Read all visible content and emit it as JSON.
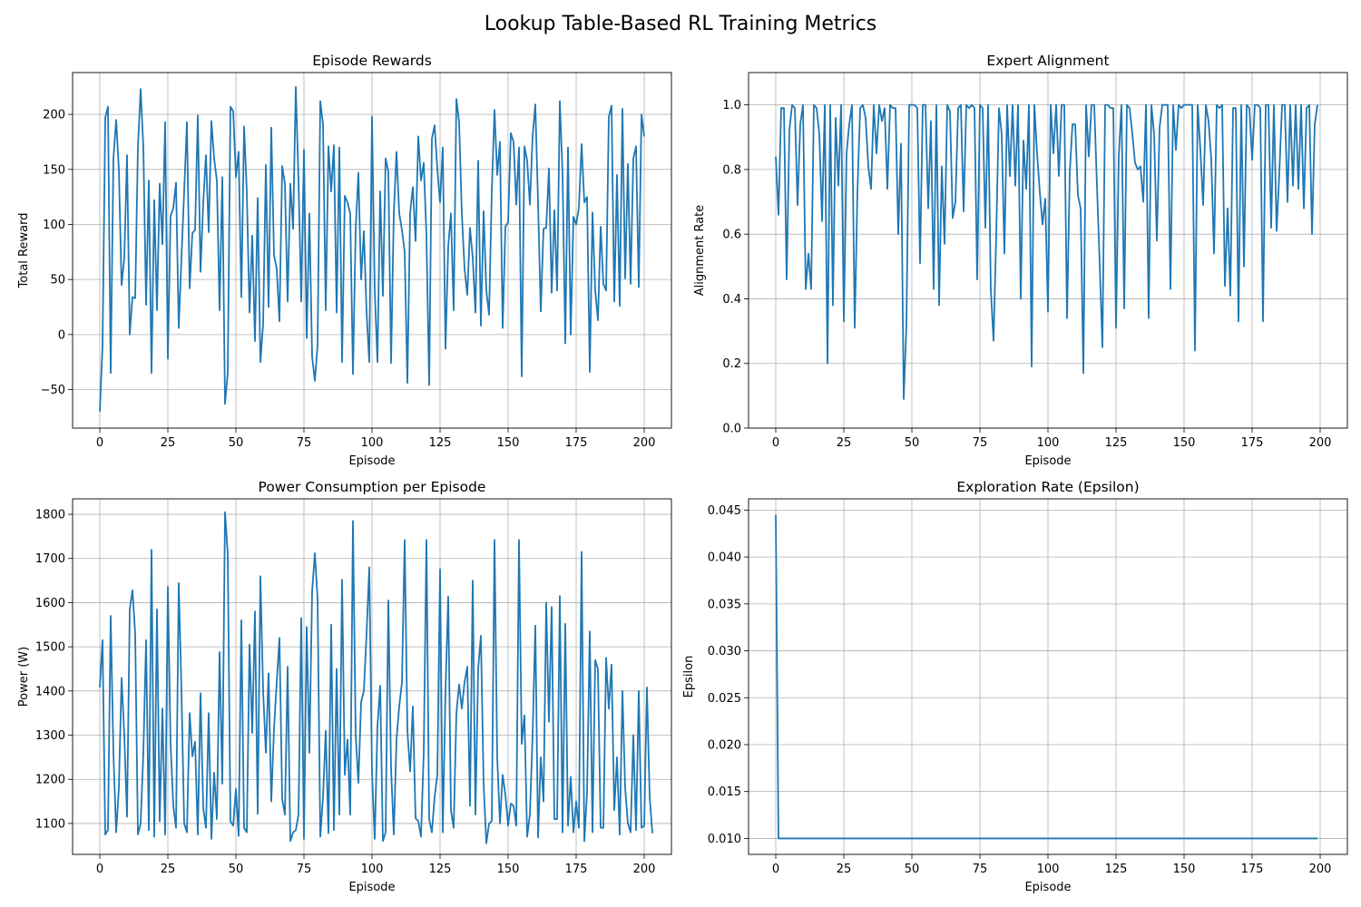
{
  "figure": {
    "title": "Lookup Table-Based RL Training Metrics",
    "line_color": "#1f77b4",
    "grid_color": "#b0b0b0"
  },
  "chart_data": [
    {
      "type": "line",
      "title": "Episode Rewards",
      "xlabel": "Episode",
      "ylabel": "Total Reward",
      "xlim": [
        -10,
        210
      ],
      "ylim": [
        -85,
        238
      ],
      "xticks": [
        0,
        25,
        50,
        75,
        100,
        125,
        150,
        175,
        200
      ],
      "yticks": [
        -50,
        0,
        50,
        100,
        150,
        200
      ],
      "x_start": 0,
      "series": [
        {
          "name": "Episode Rewards",
          "values": [
            -70,
            -10,
            197,
            207,
            -35,
            160,
            195,
            150,
            45,
            70,
            163,
            0,
            34,
            33,
            170,
            223,
            170,
            27,
            140,
            -35,
            122,
            22,
            137,
            82,
            193,
            -22,
            108,
            115,
            138,
            6,
            70,
            130,
            193,
            42,
            92,
            95,
            199,
            57,
            120,
            163,
            93,
            194,
            160,
            140,
            22,
            143,
            -63,
            -35,
            207,
            203,
            143,
            166,
            34,
            189,
            130,
            20,
            90,
            -6,
            124,
            -25,
            10,
            154,
            25,
            188,
            72,
            60,
            12,
            153,
            137,
            30,
            137,
            96,
            225,
            140,
            30,
            168,
            -3,
            110,
            -20,
            -42,
            -10,
            212,
            191,
            22,
            171,
            130,
            172,
            20,
            170,
            -25,
            126,
            120,
            110,
            -36,
            96,
            147,
            50,
            94,
            20,
            -25,
            198,
            40,
            -25,
            130,
            35,
            160,
            148,
            -26,
            110,
            166,
            110,
            95,
            75,
            -44,
            110,
            134,
            85,
            180,
            140,
            156,
            90,
            -46,
            178,
            190,
            150,
            120,
            170,
            -13,
            80,
            110,
            22,
            214,
            193,
            110,
            60,
            36,
            97,
            70,
            20,
            158,
            8,
            112,
            40,
            18,
            130,
            204,
            145,
            175,
            6,
            98,
            102,
            183,
            175,
            118,
            170,
            -38,
            171,
            158,
            118,
            180,
            209,
            120,
            21,
            96,
            97,
            151,
            38,
            113,
            40,
            212,
            146,
            -8,
            170,
            0,
            107,
            100,
            115,
            173,
            120,
            125,
            -34,
            111,
            40,
            13,
            98,
            46,
            40,
            198,
            208,
            30,
            145,
            26,
            205,
            51,
            155,
            46,
            160,
            171,
            43,
            200,
            180
          ]
        }
      ]
    },
    {
      "type": "line",
      "title": "Expert Alignment",
      "xlabel": "Episode",
      "ylabel": "Alignment Rate",
      "xlim": [
        -10,
        210
      ],
      "ylim": [
        0.0,
        1.1
      ],
      "xticks": [
        0,
        25,
        50,
        75,
        100,
        125,
        150,
        175,
        200
      ],
      "yticks": [
        0.0,
        0.2,
        0.4,
        0.6,
        0.8,
        1.0
      ],
      "x_start": 0,
      "series": [
        {
          "name": "Expert Alignment",
          "values": [
            0.84,
            0.66,
            0.99,
            0.99,
            0.46,
            0.92,
            1.0,
            0.99,
            0.69,
            0.94,
            1.0,
            0.43,
            0.54,
            0.43,
            1.0,
            0.99,
            0.91,
            0.64,
            1.0,
            0.2,
            1.0,
            0.38,
            0.96,
            0.75,
            1.0,
            0.33,
            0.85,
            0.94,
            1.0,
            0.31,
            0.73,
            0.99,
            1.0,
            0.96,
            0.81,
            0.74,
            1.0,
            0.85,
            1.0,
            0.95,
            0.99,
            0.74,
            1.0,
            0.99,
            0.99,
            0.6,
            0.88,
            0.09,
            0.32,
            1.0,
            1.0,
            1.0,
            0.99,
            0.51,
            1.0,
            1.0,
            0.68,
            0.95,
            0.43,
            1.0,
            0.38,
            0.81,
            0.57,
            1.0,
            0.98,
            0.65,
            0.7,
            0.99,
            1.0,
            0.67,
            1.0,
            0.99,
            1.0,
            0.99,
            0.46,
            1.0,
            0.99,
            0.62,
            1.0,
            0.43,
            0.27,
            0.6,
            0.99,
            0.91,
            0.54,
            1.0,
            0.78,
            1.0,
            0.75,
            1.0,
            0.4,
            0.89,
            0.74,
            1.0,
            0.19,
            1.0,
            0.85,
            0.73,
            0.63,
            0.71,
            0.36,
            1.0,
            0.85,
            1.0,
            0.78,
            1.0,
            1.0,
            0.34,
            0.79,
            0.94,
            0.94,
            0.72,
            0.68,
            0.17,
            1.0,
            0.84,
            1.0,
            1.0,
            0.75,
            0.51,
            0.25,
            1.0,
            1.0,
            0.99,
            0.99,
            0.31,
            0.84,
            1.0,
            0.37,
            1.0,
            0.99,
            0.91,
            0.82,
            0.8,
            0.81,
            0.7,
            1.0,
            0.34,
            1.0,
            0.91,
            0.58,
            0.93,
            1.0,
            1.0,
            1.0,
            0.43,
            1.0,
            0.86,
            1.0,
            0.99,
            1.0,
            1.0,
            1.0,
            1.0,
            0.24,
            1.0,
            0.86,
            0.69,
            1.0,
            0.95,
            0.83,
            0.54,
            1.0,
            0.99,
            1.0,
            0.44,
            0.68,
            0.41,
            0.99,
            0.99,
            0.33,
            1.0,
            0.5,
            1.0,
            0.99,
            0.83,
            1.0,
            1.0,
            0.99,
            0.33,
            1.0,
            1.0,
            0.62,
            1.0,
            0.61,
            0.79,
            1.0,
            1.0,
            0.7,
            1.0,
            0.75,
            1.0,
            0.74,
            1.0,
            0.68,
            0.99,
            1.0,
            0.6,
            0.94,
            1.0
          ]
        }
      ]
    },
    {
      "type": "line",
      "title": "Power Consumption per Episode",
      "xlabel": "Episode",
      "ylabel": "Power (W)",
      "xlim": [
        -10,
        210
      ],
      "ylim": [
        1030,
        1835
      ],
      "xticks": [
        0,
        25,
        50,
        75,
        100,
        125,
        150,
        175,
        200
      ],
      "yticks": [
        1100,
        1200,
        1300,
        1400,
        1500,
        1600,
        1700,
        1800
      ],
      "x_start": 0,
      "series": [
        {
          "name": "Power Consumption",
          "values": [
            1408,
            1515,
            1075,
            1085,
            1570,
            1260,
            1080,
            1180,
            1430,
            1300,
            1115,
            1585,
            1628,
            1530,
            1075,
            1100,
            1260,
            1515,
            1085,
            1720,
            1070,
            1585,
            1105,
            1360,
            1075,
            1636,
            1280,
            1140,
            1090,
            1644,
            1400,
            1100,
            1080,
            1350,
            1252,
            1285,
            1075,
            1395,
            1135,
            1090,
            1350,
            1065,
            1215,
            1110,
            1488,
            1190,
            1805,
            1710,
            1105,
            1095,
            1178,
            1072,
            1560,
            1090,
            1080,
            1505,
            1305,
            1580,
            1122,
            1660,
            1400,
            1260,
            1440,
            1150,
            1315,
            1420,
            1520,
            1155,
            1120,
            1455,
            1060,
            1080,
            1085,
            1120,
            1565,
            1065,
            1545,
            1260,
            1625,
            1712,
            1610,
            1070,
            1160,
            1310,
            1078,
            1550,
            1085,
            1450,
            1120,
            1652,
            1210,
            1290,
            1120,
            1785,
            1300,
            1192,
            1375,
            1400,
            1530,
            1680,
            1215,
            1065,
            1320,
            1412,
            1060,
            1080,
            1605,
            1225,
            1075,
            1290,
            1365,
            1420,
            1742,
            1310,
            1218,
            1365,
            1112,
            1105,
            1070,
            1260,
            1742,
            1110,
            1080,
            1160,
            1210,
            1676,
            1080,
            1400,
            1614,
            1130,
            1090,
            1350,
            1415,
            1360,
            1420,
            1455,
            1140,
            1650,
            1120,
            1450,
            1525,
            1190,
            1055,
            1100,
            1105,
            1742,
            1250,
            1100,
            1210,
            1165,
            1095,
            1145,
            1140,
            1095,
            1742,
            1280,
            1345,
            1070,
            1120,
            1300,
            1548,
            1068,
            1250,
            1150,
            1600,
            1330,
            1590,
            1110,
            1110,
            1615,
            1080,
            1552,
            1095,
            1205,
            1080,
            1150,
            1090,
            1715,
            1060,
            1170,
            1535,
            1080,
            1470,
            1450,
            1090,
            1090,
            1475,
            1360,
            1460,
            1130,
            1250,
            1075,
            1400,
            1180,
            1100,
            1080,
            1300,
            1085,
            1400,
            1090,
            1095,
            1408,
            1160,
            1078
          ]
        }
      ]
    },
    {
      "type": "line",
      "title": "Exploration Rate (Epsilon)",
      "xlabel": "Episode",
      "ylabel": "Epsilon",
      "xlim": [
        -10,
        210
      ],
      "ylim": [
        0.0083,
        0.0462
      ],
      "xticks": [
        0,
        25,
        50,
        75,
        100,
        125,
        150,
        175,
        200
      ],
      "yticks": [
        0.01,
        0.015,
        0.02,
        0.025,
        0.03,
        0.035,
        0.04,
        0.045
      ],
      "x_start": 0,
      "points": [
        [
          0,
          0.0445
        ],
        [
          1,
          0.01
        ],
        [
          199,
          0.01
        ]
      ]
    }
  ]
}
